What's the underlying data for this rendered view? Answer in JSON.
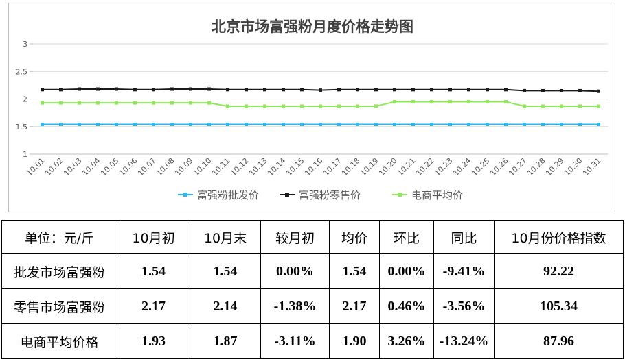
{
  "chart_data": {
    "type": "line",
    "title": "北京市场富强粉月度价格走势图",
    "xlabel": "",
    "ylabel": "",
    "ylim": [
      1,
      3
    ],
    "yticks": [
      "1",
      "1.5",
      "2",
      "2.5",
      "3"
    ],
    "grid": true,
    "legend_position": "bottom",
    "categories": [
      "10.01",
      "10.02",
      "10.03",
      "10.04",
      "10.05",
      "10.06",
      "10.07",
      "10.08",
      "10.09",
      "10.10",
      "10.11",
      "10.12",
      "10.13",
      "10.14",
      "10.15",
      "10.16",
      "10.17",
      "10.18",
      "10.19",
      "10.20",
      "10.21",
      "10.22",
      "10.23",
      "10.24",
      "10.25",
      "10.26",
      "10.27",
      "10.28",
      "10.29",
      "10.30",
      "10.31"
    ],
    "series": [
      {
        "name": "富强粉批发价",
        "color": "#2fb8ec",
        "marker": "square",
        "values": [
          1.54,
          1.54,
          1.54,
          1.54,
          1.54,
          1.54,
          1.54,
          1.54,
          1.54,
          1.54,
          1.54,
          1.54,
          1.54,
          1.54,
          1.54,
          1.54,
          1.54,
          1.54,
          1.54,
          1.54,
          1.54,
          1.54,
          1.54,
          1.54,
          1.54,
          1.54,
          1.54,
          1.54,
          1.54,
          1.54,
          1.54
        ]
      },
      {
        "name": "富强粉零售价",
        "color": "#1a1a1a",
        "marker": "square",
        "values": [
          2.17,
          2.17,
          2.18,
          2.18,
          2.18,
          2.17,
          2.17,
          2.18,
          2.18,
          2.18,
          2.17,
          2.17,
          2.17,
          2.17,
          2.17,
          2.16,
          2.17,
          2.17,
          2.17,
          2.17,
          2.17,
          2.17,
          2.17,
          2.17,
          2.17,
          2.17,
          2.15,
          2.15,
          2.15,
          2.15,
          2.14
        ]
      },
      {
        "name": "电商平均价",
        "color": "#92e85c",
        "marker": "square",
        "values": [
          1.93,
          1.93,
          1.93,
          1.93,
          1.93,
          1.93,
          1.93,
          1.93,
          1.93,
          1.93,
          1.87,
          1.87,
          1.87,
          1.87,
          1.87,
          1.87,
          1.87,
          1.87,
          1.87,
          1.95,
          1.95,
          1.95,
          1.95,
          1.95,
          1.95,
          1.95,
          1.87,
          1.87,
          1.87,
          1.87,
          1.87
        ]
      }
    ]
  },
  "table": {
    "headers": [
      "单位：元/斤",
      "10月初",
      "10月末",
      "较月初",
      "均价",
      "环比",
      "同比",
      "10月份价格指数"
    ],
    "rows": [
      {
        "label": "批发市场富强粉",
        "cells": [
          "1.54",
          "1.54",
          "0.00%",
          "1.54",
          "0.00%",
          "-9.41%",
          "92.22"
        ]
      },
      {
        "label": "零售市场富强粉",
        "cells": [
          "2.17",
          "2.14",
          "-1.38%",
          "2.17",
          "0.46%",
          "-3.56%",
          "105.34"
        ]
      },
      {
        "label": "电商平均价格",
        "cells": [
          "1.93",
          "1.87",
          "-3.11%",
          "1.90",
          "3.26%",
          "-13.24%",
          "87.96"
        ]
      }
    ]
  }
}
